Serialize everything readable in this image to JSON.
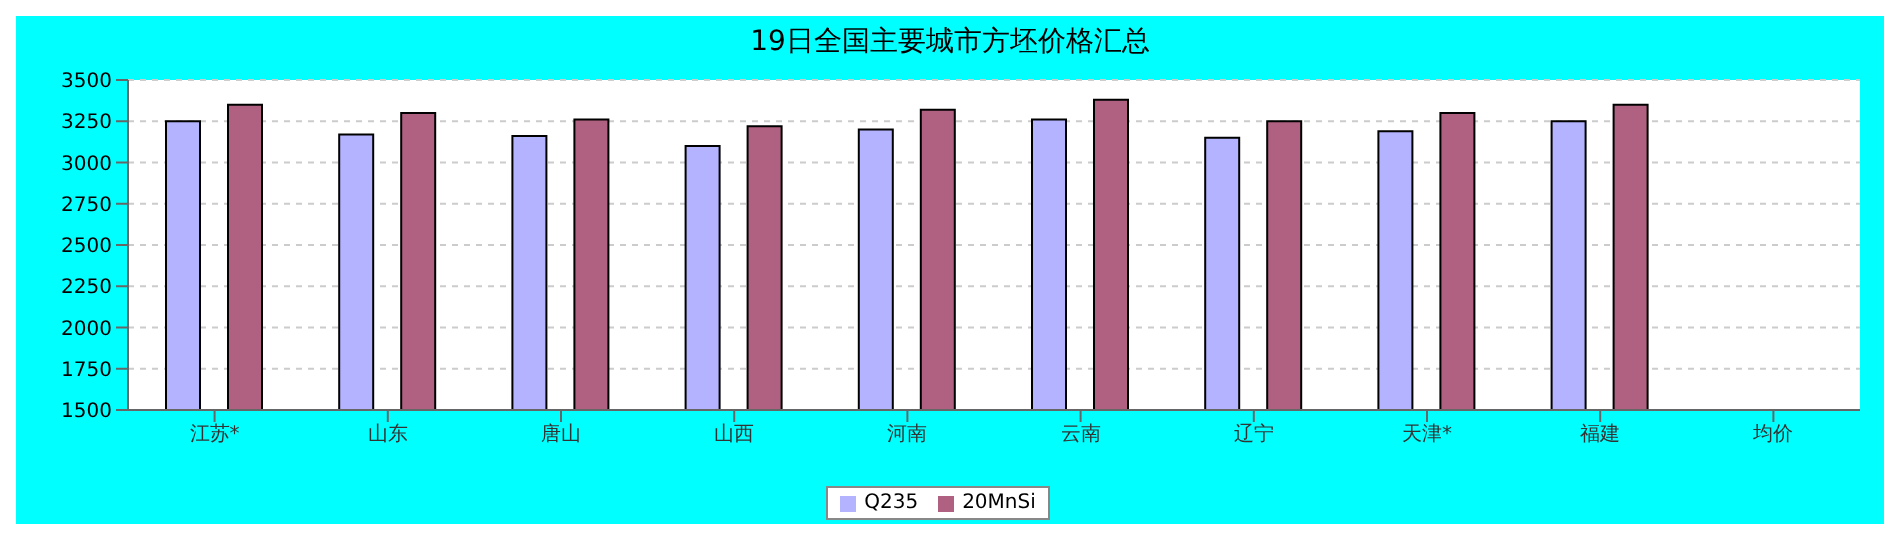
{
  "chart_data": {
    "type": "bar",
    "title": "19日全国主要城市方坯价格汇总",
    "categories": [
      "江苏*",
      "山东",
      "唐山",
      "山西",
      "河南",
      "云南",
      "辽宁",
      "天津*",
      "福建",
      "均价"
    ],
    "series": [
      {
        "name": "Q235",
        "color": "#b3b3ff",
        "values": [
          3250,
          3170,
          3160,
          3100,
          3200,
          3260,
          3150,
          3190,
          3250,
          null
        ]
      },
      {
        "name": "20MnSi",
        "color": "#b06080",
        "values": [
          3350,
          3300,
          3260,
          3220,
          3320,
          3380,
          3250,
          3300,
          3350,
          null
        ]
      }
    ],
    "ylim": [
      1500,
      3500
    ],
    "yticks": [
      1500,
      1750,
      2000,
      2250,
      2500,
      2750,
      3000,
      3250,
      3500
    ],
    "grid": "y",
    "legend": "bottom"
  }
}
